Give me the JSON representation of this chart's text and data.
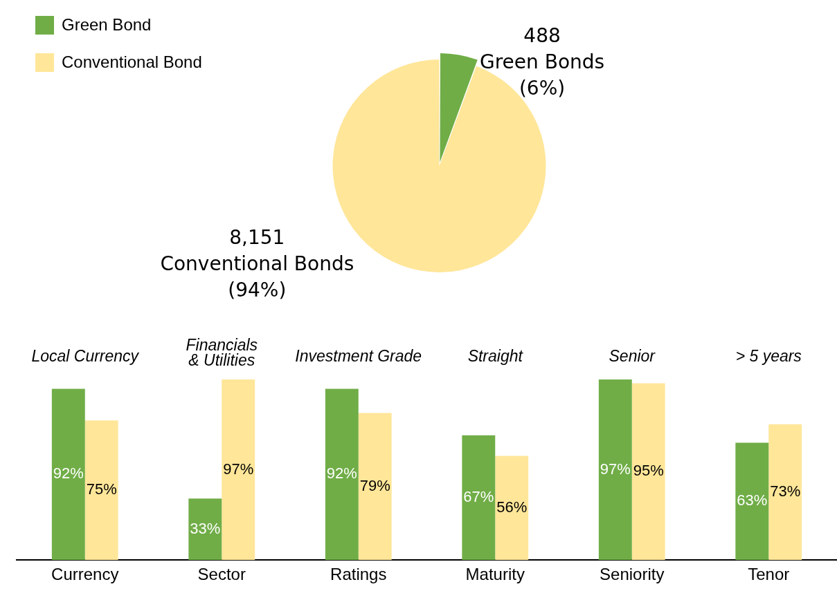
{
  "chart_data": [
    {
      "type": "pie",
      "categories": [
        "Green Bond",
        "Conventional Bond"
      ],
      "values": [
        488,
        8151
      ],
      "colors": [
        "#70ad47",
        "#ffe699"
      ],
      "value_labels": [
        "488\nGreen Bonds\n(6%)",
        "8,151\nConventional Bonds\n(94%)"
      ],
      "legend": "top left"
    },
    {
      "type": "bar",
      "categories": [
        "Currency",
        "Sector",
        "Ratings",
        "Maturity",
        "Seniority",
        "Tenor"
      ],
      "series": [
        {
          "color": "#70ad47",
          "values": [
            92,
            33,
            92,
            67,
            97,
            63
          ],
          "value_labels": [
            "92%",
            "33%",
            "92%",
            "67%",
            "97%",
            "63%"
          ]
        },
        {
          "color": "#ffe699",
          "values": [
            75,
            97,
            79,
            56,
            95,
            73
          ],
          "value_labels": [
            "75%",
            "97%",
            "79%",
            "56%",
            "95%",
            "73%"
          ]
        }
      ],
      "annotations": [
        "Local Currency",
        "Financials\n& Utilities",
        "Investment Grade",
        "Straight",
        "Senior",
        "> 5 years"
      ]
    }
  ]
}
